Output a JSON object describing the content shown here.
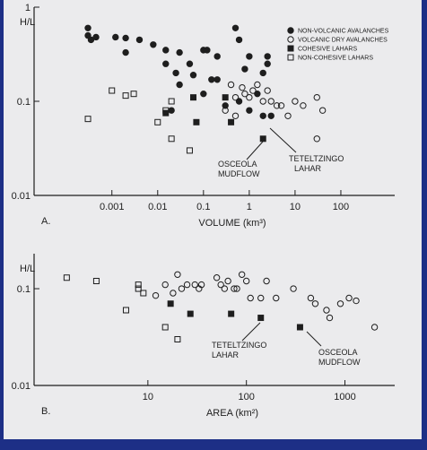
{
  "chart_data": [
    {
      "type": "scatter",
      "panel_label": "A.",
      "ylabel": "H/L",
      "xlabel": "VOLUME (km³)",
      "xscale": "log",
      "yscale": "log",
      "legend": "upper right",
      "xlim": [
        2e-05,
        1500
      ],
      "ylim": [
        0.01,
        1
      ],
      "xticks": [
        0.001,
        0.01,
        0.1,
        1,
        10,
        100
      ],
      "yticks": [
        0.01,
        0.1,
        1
      ],
      "series": [
        {
          "name": "NON-VOLCANIC AVALANCHES",
          "marker": "circle",
          "filled": true,
          "color": "#1e1e1e",
          "x": [
            0.0003,
            0.0003,
            0.00035,
            0.00045,
            0.0012,
            0.002,
            0.002,
            0.004,
            0.008,
            0.015,
            0.015,
            0.03,
            0.025,
            0.03,
            0.05,
            0.06,
            0.1,
            0.12,
            0.15,
            0.1,
            0.2,
            0.2,
            0.5,
            0.6,
            0.8,
            1,
            2,
            2.5,
            2.5,
            0.6,
            1,
            2,
            3,
            0.02,
            0.3,
            1.5
          ],
          "values": [
            0.6,
            0.5,
            0.45,
            0.48,
            0.48,
            0.47,
            0.33,
            0.45,
            0.4,
            0.35,
            0.25,
            0.33,
            0.2,
            0.15,
            0.25,
            0.19,
            0.35,
            0.35,
            0.17,
            0.12,
            0.3,
            0.17,
            0.6,
            0.45,
            0.22,
            0.3,
            0.2,
            0.3,
            0.25,
            0.1,
            0.08,
            0.07,
            0.07,
            0.08,
            0.09,
            0.12
          ]
        },
        {
          "name": "VOLCANIC DRY AVALANCHES",
          "marker": "circle",
          "filled": false,
          "color": "#1e1e1e",
          "x": [
            0.4,
            0.5,
            0.7,
            0.8,
            1,
            1.2,
            1.5,
            2,
            2.5,
            3,
            4,
            5,
            7,
            10,
            15,
            30,
            30,
            0.5,
            0.3,
            40
          ],
          "values": [
            0.15,
            0.11,
            0.14,
            0.12,
            0.11,
            0.13,
            0.15,
            0.1,
            0.13,
            0.1,
            0.09,
            0.09,
            0.07,
            0.1,
            0.09,
            0.11,
            0.04,
            0.07,
            0.08,
            0.08
          ]
        },
        {
          "name": "COHESIVE LAHARS",
          "marker": "square",
          "filled": true,
          "color": "#1e1e1e",
          "x": [
            0.015,
            0.06,
            0.07,
            0.4,
            2,
            0.3
          ],
          "values": [
            0.075,
            0.11,
            0.06,
            0.06,
            0.04,
            0.11
          ]
        },
        {
          "name": "NON-COHESIVE LAHARS",
          "marker": "square",
          "filled": false,
          "color": "#1e1e1e",
          "x": [
            0.0003,
            0.001,
            0.002,
            0.003,
            0.01,
            0.02,
            0.02,
            0.05,
            0.015
          ],
          "values": [
            0.065,
            0.13,
            0.115,
            0.12,
            0.06,
            0.1,
            0.04,
            0.03,
            0.08
          ]
        }
      ],
      "annotations": [
        {
          "text": [
            "OSCEOLA",
            "MUDFLOW"
          ]
        },
        {
          "text": [
            "TETELTZINGO",
            "LAHAR"
          ]
        }
      ]
    },
    {
      "type": "scatter",
      "panel_label": "B.",
      "ylabel": "H/L",
      "xlabel": "AREA (km²)",
      "xscale": "log",
      "yscale": "log",
      "xlim": [
        0.7,
        3200
      ],
      "ylim": [
        0.01,
        0.23
      ],
      "xticks": [
        10,
        100,
        1000
      ],
      "yticks": [
        0.01,
        0.1
      ],
      "series": [
        {
          "marker": "circle",
          "filled": false,
          "color": "#1e1e1e",
          "x": [
            12,
            15,
            18,
            20,
            22,
            25,
            30,
            33,
            35,
            50,
            55,
            60,
            65,
            75,
            80,
            90,
            100,
            110,
            140,
            160,
            200,
            300,
            450,
            500,
            650,
            700,
            900,
            1100,
            1300,
            2000
          ],
          "values": [
            0.085,
            0.11,
            0.09,
            0.14,
            0.1,
            0.11,
            0.11,
            0.1,
            0.11,
            0.13,
            0.11,
            0.1,
            0.12,
            0.1,
            0.1,
            0.14,
            0.12,
            0.08,
            0.08,
            0.12,
            0.08,
            0.1,
            0.08,
            0.07,
            0.06,
            0.05,
            0.07,
            0.08,
            0.075,
            0.04
          ]
        },
        {
          "marker": "square",
          "filled": true,
          "color": "#1e1e1e",
          "x": [
            17,
            27,
            70,
            140,
            350
          ],
          "values": [
            0.07,
            0.055,
            0.055,
            0.05,
            0.04
          ]
        },
        {
          "marker": "square",
          "filled": false,
          "color": "#1e1e1e",
          "x": [
            1.5,
            3,
            8,
            8,
            9,
            6,
            15,
            20
          ],
          "values": [
            0.13,
            0.12,
            0.11,
            0.1,
            0.09,
            0.06,
            0.04,
            0.03
          ]
        }
      ],
      "annotations": [
        {
          "text": [
            "TETELTZINGO",
            "LAHAR"
          ]
        },
        {
          "text": [
            "OSCEOLA",
            "MUDFLOW"
          ]
        }
      ]
    }
  ]
}
